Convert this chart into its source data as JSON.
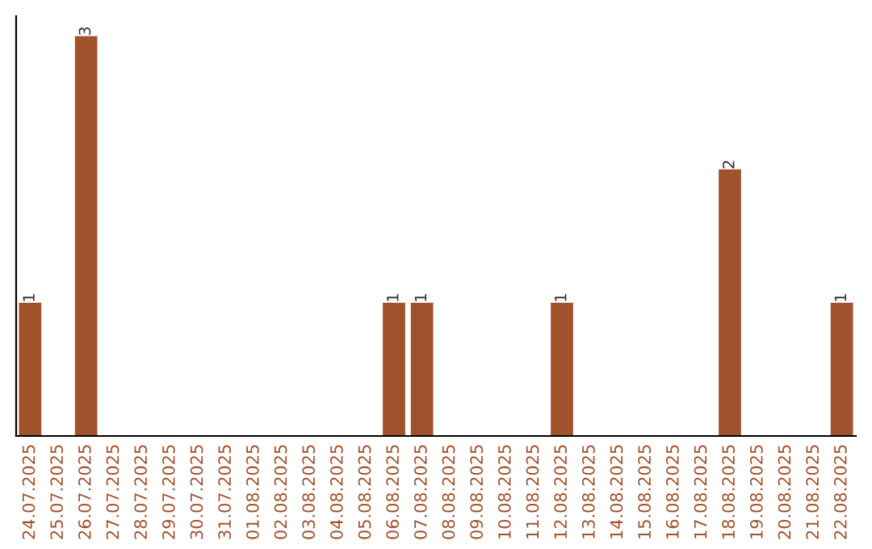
{
  "chart_data": {
    "type": "bar",
    "categories": [
      "24.07.2025",
      "25.07.2025",
      "26.07.2025",
      "27.07.2025",
      "28.07.2025",
      "29.07.2025",
      "30.07.2025",
      "31.07.2025",
      "01.08.2025",
      "02.08.2025",
      "03.08.2025",
      "04.08.2025",
      "05.08.2025",
      "06.08.2025",
      "07.08.2025",
      "08.08.2025",
      "09.08.2025",
      "10.08.2025",
      "11.08.2025",
      "12.08.2025",
      "13.08.2025",
      "14.08.2025",
      "15.08.2025",
      "16.08.2025",
      "17.08.2025",
      "18.08.2025",
      "19.08.2025",
      "20.08.2025",
      "21.08.2025",
      "22.08.2025"
    ],
    "values": [
      1,
      0,
      3,
      0,
      0,
      0,
      0,
      0,
      0,
      0,
      0,
      0,
      0,
      1,
      1,
      0,
      0,
      0,
      0,
      1,
      0,
      0,
      0,
      0,
      0,
      2,
      0,
      0,
      0,
      1
    ],
    "value_labels": [
      "1",
      null,
      "3",
      null,
      null,
      null,
      null,
      null,
      null,
      null,
      null,
      null,
      null,
      "1",
      "1",
      null,
      null,
      null,
      null,
      "1",
      null,
      null,
      null,
      null,
      null,
      "2",
      null,
      null,
      null,
      "1"
    ],
    "color": "#a0522d",
    "tick_labels": "x",
    "grid": false,
    "legend": false
  }
}
